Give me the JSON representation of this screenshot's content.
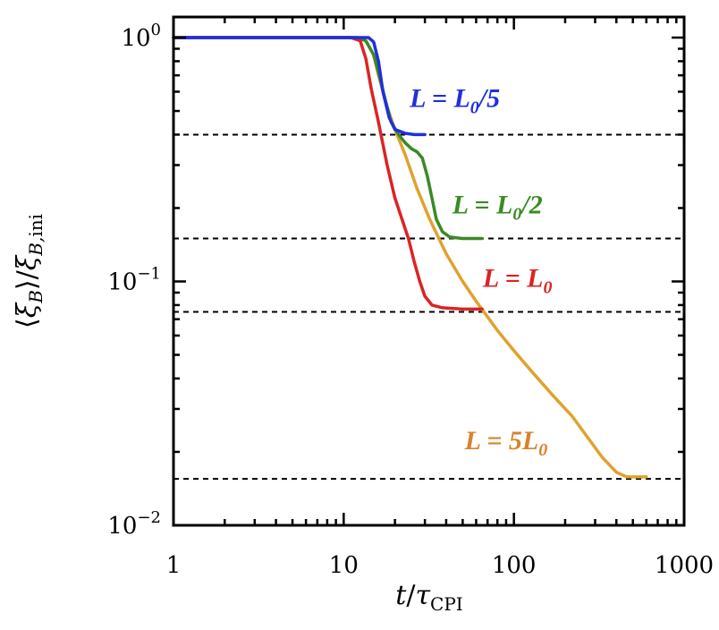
{
  "chart_data": {
    "type": "line",
    "title": "",
    "xscale": "log",
    "yscale": "log",
    "xlim": [
      1,
      1000
    ],
    "ylim": [
      0.01,
      1.2
    ],
    "xlabel": "t/τ_CPI",
    "ylabel": "⟨ξ_B⟩/ξ_B,ini",
    "x_ticks": [
      {
        "value": 1,
        "base": "1",
        "exp": ""
      },
      {
        "value": 10,
        "base": "10",
        "exp": ""
      },
      {
        "value": 100,
        "base": "100",
        "exp": ""
      },
      {
        "value": 1000,
        "base": "1000",
        "exp": ""
      }
    ],
    "y_ticks": [
      {
        "value": 1,
        "base": "10",
        "exp": "0"
      },
      {
        "value": 0.1,
        "base": "10",
        "exp": "−1"
      },
      {
        "value": 0.01,
        "base": "10",
        "exp": "−2"
      }
    ],
    "series": [
      {
        "name": "L = 5L0",
        "color": "#e0a22e",
        "points": [
          [
            1,
            1
          ],
          [
            12,
            1
          ],
          [
            13.5,
            0.97
          ],
          [
            15,
            0.85
          ],
          [
            16,
            0.7
          ],
          [
            18,
            0.52
          ],
          [
            20,
            0.42
          ],
          [
            23,
            0.33
          ],
          [
            27,
            0.24
          ],
          [
            32,
            0.18
          ],
          [
            40,
            0.13
          ],
          [
            50,
            0.1
          ],
          [
            60,
            0.083
          ],
          [
            80,
            0.063
          ],
          [
            100,
            0.052
          ],
          [
            130,
            0.042
          ],
          [
            170,
            0.034
          ],
          [
            220,
            0.028
          ],
          [
            270,
            0.023
          ],
          [
            330,
            0.019
          ],
          [
            400,
            0.0165
          ],
          [
            460,
            0.0158
          ],
          [
            520,
            0.0158
          ],
          [
            600,
            0.0158
          ]
        ]
      },
      {
        "name": "L = L0/2",
        "color": "#3a8a23",
        "points": [
          [
            1,
            1
          ],
          [
            12,
            1
          ],
          [
            13.5,
            0.97
          ],
          [
            15,
            0.85
          ],
          [
            16,
            0.72
          ],
          [
            17.5,
            0.56
          ],
          [
            19,
            0.45
          ],
          [
            21,
            0.4
          ],
          [
            23,
            0.37
          ],
          [
            25,
            0.35
          ],
          [
            27,
            0.34
          ],
          [
            29,
            0.32
          ],
          [
            31,
            0.27
          ],
          [
            33,
            0.22
          ],
          [
            35,
            0.18
          ],
          [
            38,
            0.16
          ],
          [
            42,
            0.152
          ],
          [
            50,
            0.15
          ],
          [
            65,
            0.15
          ]
        ]
      },
      {
        "name": "L = L0",
        "color": "#dc2323",
        "points": [
          [
            1,
            1
          ],
          [
            11,
            1
          ],
          [
            12.5,
            0.97
          ],
          [
            13.5,
            0.82
          ],
          [
            14.5,
            0.62
          ],
          [
            16,
            0.45
          ],
          [
            18,
            0.3
          ],
          [
            20,
            0.22
          ],
          [
            22,
            0.18
          ],
          [
            24,
            0.15
          ],
          [
            26,
            0.12
          ],
          [
            28,
            0.1
          ],
          [
            30,
            0.087
          ],
          [
            33,
            0.08
          ],
          [
            38,
            0.078
          ],
          [
            50,
            0.077
          ],
          [
            65,
            0.077
          ]
        ]
      },
      {
        "name": "L = L0/5",
        "color": "#1f2fe0",
        "points": [
          [
            1,
            1
          ],
          [
            14,
            1
          ],
          [
            15,
            0.96
          ],
          [
            16,
            0.8
          ],
          [
            17,
            0.6
          ],
          [
            18.5,
            0.47
          ],
          [
            20,
            0.42
          ],
          [
            23,
            0.405
          ],
          [
            26,
            0.4
          ],
          [
            30,
            0.4
          ]
        ]
      }
    ],
    "dashed_lines": [
      {
        "y": 0.4,
        "x_from": 1,
        "x_to": 1000
      },
      {
        "y": 0.15,
        "x_from": 1,
        "x_to": 1000
      },
      {
        "y": 0.075,
        "x_from": 1,
        "x_to": 1000
      },
      {
        "y": 0.0155,
        "x_from": 1,
        "x_to": 1000
      }
    ],
    "annotations": [
      {
        "pre": "L = L",
        "sub": "0",
        "post": "/5",
        "color": "#1f2fe0",
        "x": 45,
        "y": 0.52
      },
      {
        "pre": "L = L",
        "sub": "0",
        "post": "/2",
        "color": "#3a8a23",
        "x": 80,
        "y": 0.19
      },
      {
        "pre": "L = L",
        "sub": "0",
        "post": "",
        "color": "#dc2323",
        "x": 105,
        "y": 0.095
      },
      {
        "pre": "L = 5L",
        "sub": "0",
        "post": "",
        "color": "#d9822b",
        "x": 90,
        "y": 0.0205
      }
    ]
  }
}
